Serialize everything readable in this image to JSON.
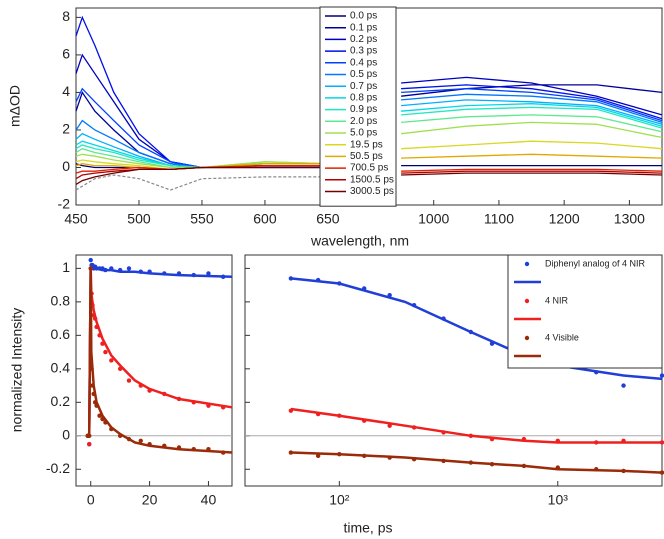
{
  "chart_data": [
    {
      "type": "line",
      "xlabel": "wavelength, nm",
      "ylabel": "mΔOD",
      "panels": [
        {
          "xlim": [
            450,
            685
          ],
          "xticks": [
            450,
            500,
            550,
            600,
            650
          ]
        },
        {
          "xlim": [
            910,
            1350
          ],
          "xticks": [
            1000,
            1100,
            1200,
            1300
          ]
        }
      ],
      "ylim": [
        -2,
        8.5
      ],
      "yticks": [
        -2,
        0,
        2,
        4,
        6,
        8
      ],
      "legend": "upper center",
      "x": [
        450,
        455,
        465,
        480,
        500,
        525,
        550,
        600,
        650,
        950,
        1050,
        1150,
        1250,
        1350
      ],
      "series": [
        {
          "name": "0.0 ps",
          "color": "#00007a",
          "values": [
            0.2,
            0.1,
            0,
            0,
            0,
            -0.1,
            0,
            0,
            0,
            0.1,
            0.1,
            0.1,
            0.1,
            0.1
          ]
        },
        {
          "name": "0.1 ps",
          "color": "#000098",
          "values": [
            3,
            4,
            3,
            2,
            0.8,
            0.2,
            0,
            0.1,
            0.1,
            3.8,
            4.2,
            4.4,
            4.4,
            4.0
          ]
        },
        {
          "name": "0.2 ps",
          "color": "#0000c0",
          "values": [
            5,
            6,
            5,
            3.5,
            1.5,
            0.3,
            0,
            0.1,
            0.1,
            4.5,
            4.8,
            4.5,
            3.8,
            2.8
          ]
        },
        {
          "name": "0.3 ps",
          "color": "#0010e8",
          "values": [
            7,
            8,
            6.5,
            4,
            1.8,
            0.3,
            0,
            0.1,
            0.1,
            4.2,
            4.4,
            4.2,
            3.7,
            2.6
          ]
        },
        {
          "name": "0.4 ps",
          "color": "#0040ff",
          "values": [
            3.5,
            4.2,
            3.5,
            2.5,
            1.2,
            0.3,
            0,
            0.1,
            0.1,
            4.0,
            4.2,
            4.0,
            3.6,
            2.5
          ]
        },
        {
          "name": "0.5 ps",
          "color": "#0078ff",
          "values": [
            2,
            2.5,
            2,
            1.5,
            0.8,
            0.2,
            0,
            0.2,
            0.2,
            3.6,
            3.9,
            3.8,
            3.5,
            2.4
          ]
        },
        {
          "name": "0.7 ps",
          "color": "#00b0ff",
          "values": [
            1.5,
            1.8,
            1.5,
            1.1,
            0.6,
            0.1,
            0,
            0.2,
            0.2,
            3.3,
            3.6,
            3.5,
            3.3,
            2.3
          ]
        },
        {
          "name": "0.8 ps",
          "color": "#00d8e8",
          "values": [
            1.2,
            1.4,
            1.2,
            0.9,
            0.5,
            0.1,
            0,
            0.2,
            0.2,
            3.0,
            3.3,
            3.4,
            3.2,
            2.2
          ]
        },
        {
          "name": "0.9 ps",
          "color": "#20e8c0",
          "values": [
            1.0,
            1.2,
            1.0,
            0.8,
            0.4,
            0.1,
            0,
            0.2,
            0.2,
            2.8,
            3.1,
            3.2,
            3.1,
            2.1
          ]
        },
        {
          "name": "2.0 ps",
          "color": "#60e890",
          "values": [
            0.8,
            1.0,
            0.8,
            0.6,
            0.3,
            0,
            0,
            0.3,
            0.2,
            2.4,
            2.7,
            2.8,
            2.7,
            1.9
          ]
        },
        {
          "name": "5.0 ps",
          "color": "#a0e050",
          "values": [
            0.6,
            0.7,
            0.6,
            0.4,
            0.2,
            0,
            0,
            0.3,
            0.2,
            1.8,
            2.2,
            2.4,
            2.3,
            1.6
          ]
        },
        {
          "name": "19.5 ps",
          "color": "#d8d820",
          "values": [
            0.3,
            0.4,
            0.3,
            0.2,
            0.1,
            -0.1,
            0,
            0.2,
            0.2,
            1.0,
            1.2,
            1.4,
            1.3,
            1.0
          ]
        },
        {
          "name": "50.5 ps",
          "color": "#e0a800",
          "values": [
            0.1,
            0.2,
            0.1,
            0.1,
            0,
            -0.1,
            0,
            0.2,
            0.2,
            0.5,
            0.6,
            0.7,
            0.6,
            0.5
          ]
        },
        {
          "name": "700.5 ps",
          "color": "#e02000",
          "values": [
            -0.3,
            -0.2,
            -0.2,
            -0.1,
            0,
            -0.1,
            0,
            0.1,
            0.1,
            -0.2,
            -0.1,
            -0.1,
            -0.1,
            -0.2
          ]
        },
        {
          "name": "1500.5 ps",
          "color": "#b00000",
          "values": [
            -0.6,
            -0.4,
            -0.3,
            -0.2,
            -0.1,
            -0.1,
            0,
            0,
            0,
            -0.3,
            -0.2,
            -0.2,
            -0.2,
            -0.3
          ]
        },
        {
          "name": "3000.5 ps",
          "color": "#700000",
          "values": [
            -0.9,
            -0.7,
            -0.5,
            -0.3,
            -0.1,
            -0.1,
            0,
            0,
            0,
            -0.4,
            -0.3,
            -0.3,
            -0.3,
            -0.4
          ]
        },
        {
          "color": "#888888",
          "style": "dashed",
          "values": [
            -1.2,
            -1,
            -0.6,
            -0.4,
            -0.6,
            -1.2,
            -0.6,
            -0.5,
            -0.5,
            null,
            null,
            null,
            null,
            null
          ]
        }
      ]
    },
    {
      "type": "scatter",
      "xlabel": "time, ps",
      "ylabel": "normalized Intensity",
      "panels": [
        {
          "xlim": [
            -5,
            48
          ],
          "xticks": [
            0,
            20,
            40
          ]
        },
        {
          "xlim": [
            37,
            3000
          ],
          "log": true,
          "xticks": [
            {
              "value": 100,
              "label": "10²"
            },
            {
              "value": 1000,
              "label": "10³"
            }
          ]
        }
      ],
      "ylim": [
        -0.3,
        1.08
      ],
      "yticks": [
        -0.2,
        0,
        0.2,
        0.4,
        0.6,
        0.8,
        1
      ],
      "zero_line": true,
      "legend": "upper right",
      "x": [
        -1,
        -0.5,
        0,
        0.3,
        0.6,
        1,
        1.5,
        2,
        3,
        4,
        5,
        7,
        10,
        13,
        17,
        20,
        25,
        30,
        35,
        40,
        45,
        60,
        80,
        100,
        130,
        170,
        220,
        300,
        400,
        500,
        700,
        1000,
        1500,
        2000,
        3000
      ],
      "fit_x": [
        -0.5,
        0,
        0.2,
        1,
        2,
        4,
        7,
        10,
        15,
        20,
        30,
        48,
        60,
        100,
        200,
        400,
        700,
        1000,
        2000,
        3000
      ],
      "series": [
        {
          "name": "Diphenyl analog of 4 NIR",
          "color": "#1f3fd8",
          "values": [
            0,
            -0.05,
            1.05,
            1.02,
            1.02,
            1.0,
            1.01,
            1.0,
            1.0,
            1.0,
            0.99,
            1.0,
            0.99,
            1.0,
            0.98,
            0.98,
            0.97,
            0.97,
            0.96,
            0.97,
            0.95,
            0.94,
            0.93,
            0.91,
            0.88,
            0.84,
            0.78,
            0.7,
            0.62,
            0.55,
            0.47,
            0.42,
            0.38,
            0.3,
            0.36
          ],
          "fit": [
            0,
            1.0,
            1.0,
            1.0,
            1.0,
            0.99,
            0.99,
            0.98,
            0.98,
            0.97,
            0.96,
            0.95,
            0.94,
            0.91,
            0.8,
            0.62,
            0.48,
            0.42,
            0.36,
            0.34
          ]
        },
        {
          "name": "4 NIR",
          "color": "#ee2020",
          "values": [
            0,
            -0.05,
            1.0,
            0.85,
            0.78,
            0.72,
            0.7,
            0.65,
            0.6,
            0.55,
            0.5,
            0.45,
            0.4,
            0.33,
            0.3,
            0.27,
            0.25,
            0.22,
            0.2,
            0.18,
            0.17,
            0.15,
            0.13,
            0.12,
            0.09,
            0.06,
            0.05,
            0.02,
            0.0,
            -0.02,
            -0.02,
            -0.03,
            -0.04,
            -0.03,
            -0.04
          ],
          "fit": [
            0,
            1.0,
            0.85,
            0.75,
            0.68,
            0.58,
            0.48,
            0.42,
            0.33,
            0.28,
            0.22,
            0.17,
            0.16,
            0.12,
            0.06,
            0.0,
            -0.03,
            -0.04,
            -0.04,
            -0.04
          ]
        },
        {
          "name": "4 Visible",
          "color": "#9a2a08",
          "values": [
            0,
            0,
            1.0,
            0.4,
            0.3,
            0.25,
            0.2,
            0.18,
            0.12,
            0.1,
            0.08,
            0.04,
            0.0,
            -0.02,
            -0.03,
            -0.05,
            -0.06,
            -0.07,
            -0.08,
            -0.08,
            -0.1,
            -0.1,
            -0.12,
            -0.11,
            -0.12,
            -0.13,
            -0.14,
            -0.15,
            -0.16,
            -0.17,
            -0.18,
            -0.19,
            -0.2,
            -0.21,
            -0.22
          ],
          "fit": [
            0,
            1.0,
            0.5,
            0.3,
            0.2,
            0.12,
            0.05,
            0.01,
            -0.04,
            -0.06,
            -0.08,
            -0.1,
            -0.1,
            -0.11,
            -0.13,
            -0.16,
            -0.18,
            -0.2,
            -0.21,
            -0.22
          ]
        }
      ]
    }
  ]
}
